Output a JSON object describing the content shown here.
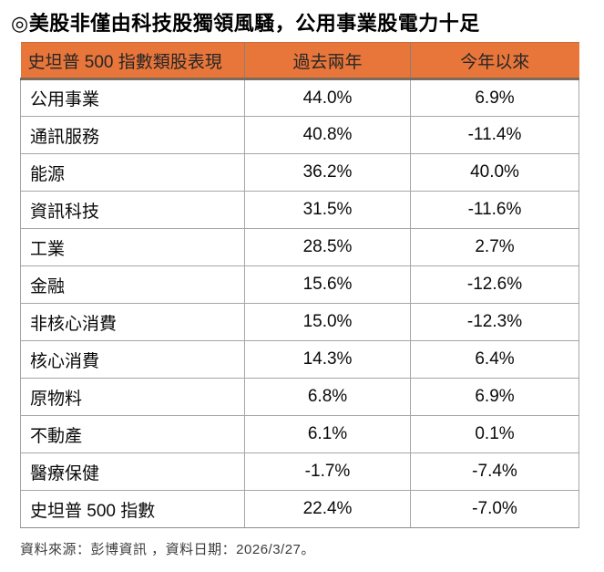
{
  "title": "◎美股非僅由科技股獨領風騷，公用事業股電力十足",
  "table": {
    "headers": [
      "史坦普 500 指數類股表現",
      "過去兩年",
      "今年以來"
    ],
    "rows": [
      {
        "label": "公用事業",
        "two_year": "44.0%",
        "ytd": "6.9%"
      },
      {
        "label": "通訊服務",
        "two_year": "40.8%",
        "ytd": "-11.4%"
      },
      {
        "label": "能源",
        "two_year": "36.2%",
        "ytd": "40.0%"
      },
      {
        "label": "資訊科技",
        "two_year": "31.5%",
        "ytd": "-11.6%"
      },
      {
        "label": "工業",
        "two_year": "28.5%",
        "ytd": "2.7%"
      },
      {
        "label": "金融",
        "two_year": "15.6%",
        "ytd": "-12.6%"
      },
      {
        "label": "非核心消費",
        "two_year": "15.0%",
        "ytd": "-12.3%"
      },
      {
        "label": "核心消費",
        "two_year": "14.3%",
        "ytd": "6.4%"
      },
      {
        "label": "原物料",
        "two_year": "6.8%",
        "ytd": "6.9%"
      },
      {
        "label": "不動產",
        "two_year": "6.1%",
        "ytd": "0.1%"
      },
      {
        "label": "醫療保健",
        "two_year": "-1.7%",
        "ytd": "-7.4%"
      },
      {
        "label": "史坦普 500 指數",
        "two_year": "22.4%",
        "ytd": "-7.0%"
      }
    ]
  },
  "footer": "資料來源：彭博資訊 ，資料日期：2026/3/27。",
  "colors": {
    "header_bg": "#E8763B",
    "header_bottom_border": "#7d6a58",
    "grid_border": "#a6a6a6",
    "text": "#000000"
  },
  "chart_data": {
    "type": "table",
    "title": "史坦普 500 指數類股表現",
    "columns": [
      "史坦普 500 指數類股表現",
      "過去兩年",
      "今年以來"
    ],
    "units": "%",
    "rows": [
      [
        "公用事業",
        44.0,
        6.9
      ],
      [
        "通訊服務",
        40.8,
        -11.4
      ],
      [
        "能源",
        36.2,
        40.0
      ],
      [
        "資訊科技",
        31.5,
        -11.6
      ],
      [
        "工業",
        28.5,
        2.7
      ],
      [
        "金融",
        15.6,
        -12.6
      ],
      [
        "非核心消費",
        15.0,
        -12.3
      ],
      [
        "核心消費",
        14.3,
        6.4
      ],
      [
        "原物料",
        6.8,
        6.9
      ],
      [
        "不動產",
        6.1,
        0.1
      ],
      [
        "醫療保健",
        -1.7,
        -7.4
      ],
      [
        "史坦普 500 指數",
        22.4,
        -7.0
      ]
    ],
    "source_note": "資料來源：彭博資訊 ，資料日期：2026/3/27。"
  }
}
